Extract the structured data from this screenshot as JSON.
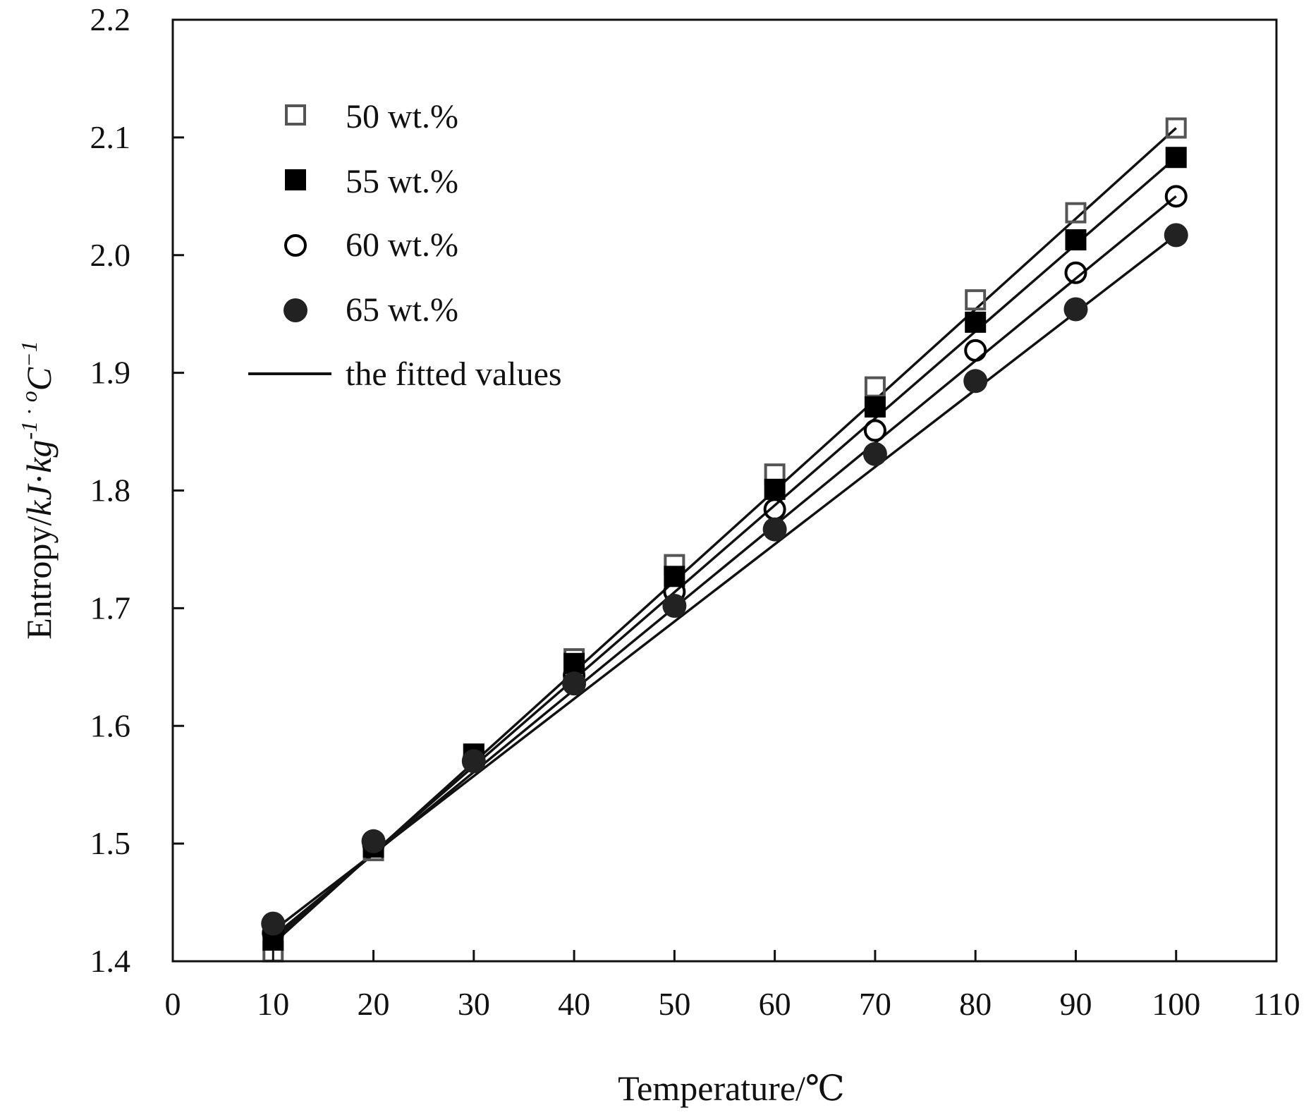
{
  "chart_data": {
    "type": "scatter",
    "title": "",
    "xlabel": "Temperature/℃",
    "ylabel": {
      "prefix": "Entropy/",
      "unit1": "kJ",
      "dot": "·",
      "unit2": "kg",
      "exp1": "-1",
      "sep": " · ",
      "degree": "o",
      "unit3": "C",
      "exp2": "−1"
    },
    "xlim": [
      0,
      110
    ],
    "ylim": [
      1.4,
      2.2
    ],
    "xticks": [
      "0",
      "10",
      "20",
      "30",
      "40",
      "50",
      "60",
      "70",
      "80",
      "90",
      "100",
      "110"
    ],
    "yticks": [
      "1.4",
      "1.5",
      "1.6",
      "1.7",
      "1.8",
      "1.9",
      "2.0",
      "2.1",
      "2.2"
    ],
    "grid": false,
    "legend_position": "top-left",
    "x": [
      10,
      20,
      30,
      40,
      50,
      60,
      70,
      80,
      90,
      100
    ],
    "series": [
      {
        "name": "50 wt.%",
        "marker": "open-square",
        "color": "#555555",
        "values": [
          1.408,
          1.494,
          1.576,
          1.657,
          1.737,
          1.814,
          1.888,
          1.962,
          2.036,
          2.108
        ],
        "fit": [
          1.415,
          2.108
        ]
      },
      {
        "name": "55 wt.%",
        "marker": "filled-square",
        "color": "#000000",
        "values": [
          1.418,
          1.497,
          1.576,
          1.653,
          1.727,
          1.801,
          1.871,
          1.943,
          2.013,
          2.083
        ],
        "fit": [
          1.418,
          2.083
        ]
      },
      {
        "name": "60 wt.%",
        "marker": "open-circle",
        "color": "#000000",
        "values": [
          1.424,
          1.499,
          1.572,
          1.643,
          1.714,
          1.784,
          1.851,
          1.919,
          1.985,
          2.05
        ],
        "fit": [
          1.421,
          2.05
        ]
      },
      {
        "name": "65 wt.%",
        "marker": "filled-circle",
        "color": "#222222",
        "values": [
          1.432,
          1.502,
          1.57,
          1.636,
          1.702,
          1.767,
          1.831,
          1.893,
          1.954,
          2.017
        ],
        "fit": [
          1.426,
          2.017
        ]
      }
    ],
    "fit_legend": "the fitted values"
  }
}
